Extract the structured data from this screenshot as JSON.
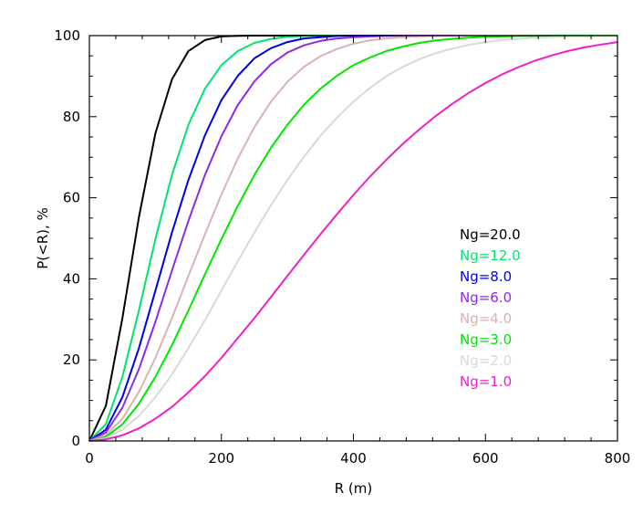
{
  "chart_data": {
    "type": "line",
    "title": "",
    "xlabel": "R (m)",
    "ylabel": "P(<R), %",
    "xlim": [
      0,
      800
    ],
    "ylim": [
      0,
      100
    ],
    "xticks": [
      0,
      200,
      400,
      600,
      800
    ],
    "yticks": [
      0,
      20,
      40,
      60,
      80,
      100
    ],
    "grid": false,
    "legend_position": "right",
    "x": [
      0,
      25,
      50,
      75,
      100,
      125,
      150,
      175,
      200,
      225,
      250,
      275,
      300,
      325,
      350,
      375,
      400,
      425,
      450,
      475,
      500,
      525,
      550,
      575,
      600,
      625,
      650,
      675,
      700,
      725,
      750,
      775,
      800
    ],
    "series": [
      {
        "name": "Ng=20.0",
        "color": "#000000",
        "values": [
          0,
          8.7,
          30.3,
          55.2,
          75.9,
          89.2,
          96.2,
          98.9,
          99.8,
          99.96,
          100,
          100,
          100,
          100,
          100,
          100,
          100,
          100,
          100,
          100,
          100,
          100,
          100,
          100,
          100,
          100,
          100,
          100,
          100,
          100,
          100,
          100,
          100
        ]
      },
      {
        "name": "Ng=12.0",
        "color": "#00e36e",
        "values": [
          0,
          4.2,
          15.8,
          32.2,
          49.8,
          65.6,
          78.0,
          86.9,
          92.7,
          96.2,
          98.2,
          99.2,
          99.7,
          99.9,
          100,
          100,
          100,
          100,
          100,
          100,
          100,
          100,
          100,
          100,
          100,
          100,
          100,
          100,
          100,
          100,
          100,
          100,
          100
        ]
      },
      {
        "name": "Ng=8.0",
        "color": "#0000e6",
        "values": [
          0,
          2.8,
          10.8,
          22.9,
          37.1,
          51.4,
          64.4,
          75.4,
          84.1,
          90.1,
          94.4,
          96.9,
          98.4,
          99.3,
          99.6,
          99.9,
          100,
          100,
          100,
          100,
          100,
          100,
          100,
          100,
          100,
          100,
          100,
          100,
          100,
          100,
          100,
          100,
          100
        ]
      },
      {
        "name": "Ng=6.0",
        "color": "#8b2be6",
        "values": [
          0,
          2.1,
          8.2,
          17.7,
          29.4,
          42.0,
          54.3,
          65.6,
          75.2,
          82.9,
          88.7,
          92.9,
          95.8,
          97.6,
          98.7,
          99.3,
          99.6,
          99.8,
          99.9,
          100,
          100,
          100,
          100,
          100,
          100,
          100,
          100,
          100,
          100,
          100,
          100,
          100,
          100
        ]
      },
      {
        "name": "Ng=4.0",
        "color": "#d9b3b3",
        "values": [
          0,
          1.4,
          5.5,
          12.1,
          20.5,
          30.3,
          40.7,
          51.0,
          60.8,
          69.7,
          77.4,
          83.7,
          88.6,
          92.3,
          94.9,
          96.7,
          98.0,
          98.8,
          99.3,
          99.6,
          99.8,
          99.9,
          99.9,
          100,
          100,
          100,
          100,
          100,
          100,
          100,
          100,
          100,
          100
        ]
      },
      {
        "name": "Ng=3.0",
        "color": "#00e600",
        "values": [
          0,
          1.0,
          4.1,
          9.2,
          15.8,
          23.6,
          32.2,
          41.1,
          49.8,
          58.0,
          65.6,
          72.3,
          78.0,
          82.9,
          86.9,
          90.1,
          92.7,
          94.6,
          96.2,
          97.3,
          98.2,
          98.8,
          99.2,
          99.5,
          99.7,
          99.8,
          99.9,
          99.9,
          100,
          100,
          100,
          100,
          100
        ]
      },
      {
        "name": "Ng=2.0",
        "color": "#d9d9d9",
        "values": [
          0,
          0.7,
          2.8,
          6.2,
          10.8,
          16.4,
          22.9,
          29.8,
          37.1,
          44.4,
          51.4,
          58.1,
          64.4,
          70.1,
          75.3,
          79.7,
          83.7,
          87.1,
          90.0,
          92.3,
          94.2,
          95.7,
          96.8,
          97.7,
          98.4,
          98.9,
          99.2,
          99.5,
          99.6,
          99.8,
          99.8,
          99.9,
          99.9
        ]
      },
      {
        "name": "Ng=1.0",
        "color": "#f020c8",
        "values": [
          0,
          0.4,
          1.4,
          3.1,
          5.5,
          8.4,
          12.0,
          16.0,
          20.5,
          25.4,
          30.3,
          35.5,
          40.7,
          45.9,
          51.0,
          55.9,
          60.7,
          65.2,
          69.4,
          73.3,
          76.9,
          80.2,
          83.2,
          85.9,
          88.3,
          90.4,
          92.2,
          93.8,
          95.1,
          96.2,
          97.1,
          97.8,
          98.4
        ]
      }
    ]
  }
}
